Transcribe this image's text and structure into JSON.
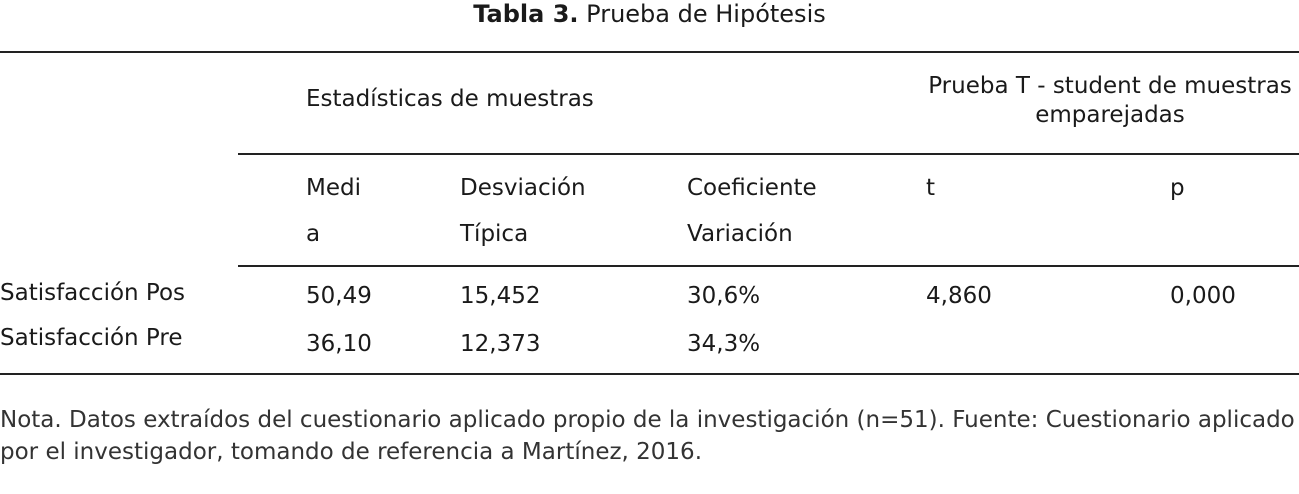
{
  "title": {
    "label": "Tabla 3.",
    "text": "Prueba de Hipótesis"
  },
  "header": {
    "group_left": "Estadísticas de muestras",
    "group_right_line1": "Prueba T - student de muestras",
    "group_right_line2": "emparejadas",
    "columns": {
      "media_1": "Medi",
      "media_2": "a",
      "desviacion_1": "Desviación",
      "desviacion_2": "Típica",
      "coeficiente_1": "Coeficiente",
      "coeficiente_2": "Variación",
      "t": "t",
      "p": "p"
    }
  },
  "rows": [
    {
      "label": "Satisfacción Pos",
      "media": "50,49",
      "desviacion": "15,452",
      "coeficiente": "30,6%",
      "t": "4,860",
      "p": "0,000"
    },
    {
      "label": "Satisfacción Pre",
      "media": "36,10",
      "desviacion": "12,373",
      "coeficiente": "34,3%",
      "t": "",
      "p": ""
    }
  ],
  "note": "Nota. Datos extraídos del cuestionario aplicado propio de la investigación (n=51). Fuente: Cuestionario aplicado por el investigador, tomando de referencia a Martínez, 2016."
}
